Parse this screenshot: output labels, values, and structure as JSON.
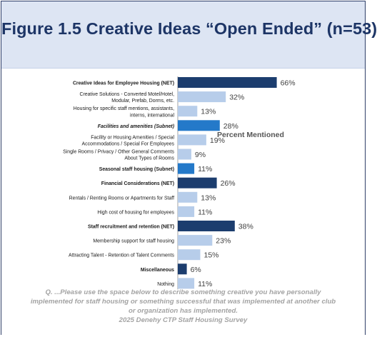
{
  "title": "Figure 1.5 Creative Ideas “Open Ended” (n=53)",
  "colors": {
    "header_bg": "#dde5f3",
    "title": "#1d3566",
    "net": "#1c3d6e",
    "subnet": "#2479c9",
    "item": "#b7cdea",
    "footnote": "#a3a3a3"
  },
  "chart_data": {
    "type": "bar",
    "orientation": "horizontal",
    "legend": "Percent Mentioned",
    "value_suffix": "%",
    "xlim": [
      0,
      100
    ],
    "categories": [
      {
        "label": [
          "Creative Ideas for Employee Housing (NET)"
        ],
        "value": 66,
        "kind": "net"
      },
      {
        "label": [
          "Creative Solutions - Converted Motel/Hotel,",
          "Modular, Prefab, Dorms, etc."
        ],
        "value": 32,
        "kind": "item"
      },
      {
        "label": [
          "Housing for specific staff mentions, assistants,",
          "interns, international"
        ],
        "value": 13,
        "kind": "item"
      },
      {
        "label": [
          "Facilities and amenities (Subnet)"
        ],
        "value": 28,
        "kind": "subnet"
      },
      {
        "label": [
          "Facility or Housing Amenities / Special",
          "Accommodations / Special For Employees"
        ],
        "value": 19,
        "kind": "item"
      },
      {
        "label": [
          "Single Rooms / Privacy / Other General Comments",
          "About Types of Rooms"
        ],
        "value": 9,
        "kind": "item"
      },
      {
        "label": [
          "Seasonal staff housing (Subnet)"
        ],
        "value": 11,
        "kind": "subnet"
      },
      {
        "label": [
          "Financial Considerations (NET)"
        ],
        "value": 26,
        "kind": "net"
      },
      {
        "label": [
          "Rentals / Renting Rooms or Apartments for Staff"
        ],
        "value": 13,
        "kind": "item"
      },
      {
        "label": [
          "High cost of housing for employees"
        ],
        "value": 11,
        "kind": "item"
      },
      {
        "label": [
          "Staff recruitment and retention (NET)"
        ],
        "value": 38,
        "kind": "net"
      },
      {
        "label": [
          "Membership support for staff housing"
        ],
        "value": 23,
        "kind": "item"
      },
      {
        "label": [
          "Attracting Talent - Retention of Talent Comments"
        ],
        "value": 15,
        "kind": "item"
      },
      {
        "label": [
          "Miscellaneous"
        ],
        "value": 6,
        "kind": "net"
      },
      {
        "label": [
          "Nothing"
        ],
        "value": 11,
        "kind": "item"
      }
    ]
  },
  "footnote": {
    "line1": "Q. ...Please use the space below to describe something creative you have personally",
    "line2": "implemented for staff housing or something successful that was implemented at another club",
    "line3": "or organization has implemented.",
    "line4": "2025 Denehy CTP Staff Housing Survey"
  }
}
